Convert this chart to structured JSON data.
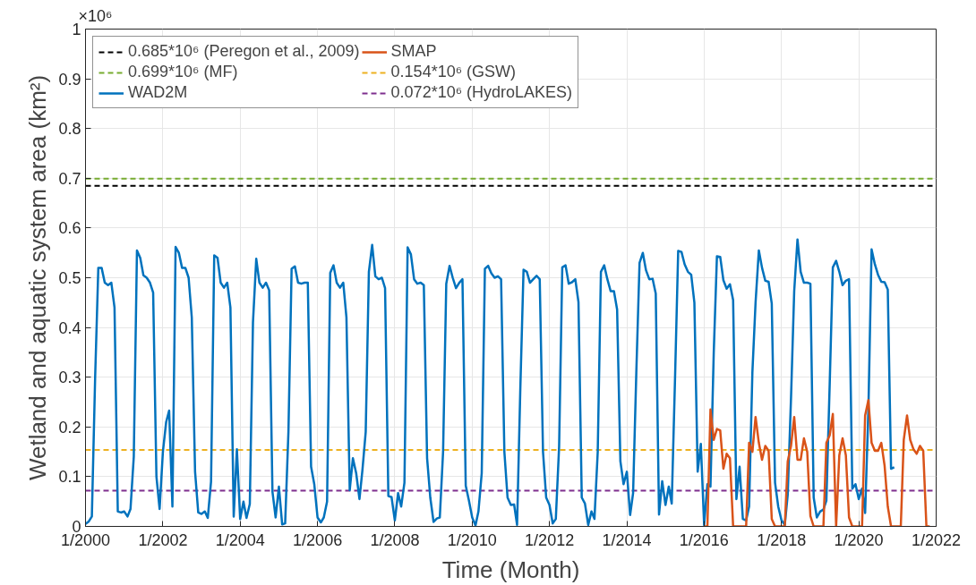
{
  "chart_data": {
    "type": "line",
    "xlabel": "Time (Month)",
    "ylabel": "Wetland and aquatic system area (km²)",
    "annotations": [
      "×10⁶"
    ],
    "xlim": [
      "2000-01",
      "2022-01"
    ],
    "xticks": [
      {
        "value": "2000-01",
        "label": "1/2000"
      },
      {
        "value": "2002-01",
        "label": "1/2002"
      },
      {
        "value": "2004-01",
        "label": "1/2004"
      },
      {
        "value": "2006-01",
        "label": "1/2006"
      },
      {
        "value": "2008-01",
        "label": "1/2008"
      },
      {
        "value": "2010-01",
        "label": "1/2010"
      },
      {
        "value": "2012-01",
        "label": "1/2012"
      },
      {
        "value": "2014-01",
        "label": "1/2014"
      },
      {
        "value": "2016-01",
        "label": "1/2016"
      },
      {
        "value": "2018-01",
        "label": "1/2018"
      },
      {
        "value": "2020-01",
        "label": "1/2020"
      },
      {
        "value": "2022-01",
        "label": "1/2022"
      }
    ],
    "ylim": [
      0,
      1
    ],
    "yticks": [
      0,
      0.1,
      0.2,
      0.3,
      0.4,
      0.5,
      0.6,
      0.7,
      0.8,
      0.9,
      1
    ],
    "grid": true,
    "legend": "top left",
    "line_style": "solid",
    "marker": "none",
    "ref_lines": [
      {
        "axis": "y",
        "value": 0.685,
        "label": "0.685*10⁶ (Peregon et al., 2009)",
        "color": "#000000",
        "line_style": "dashed"
      },
      {
        "axis": "y",
        "value": 0.699,
        "label": "0.699*10⁶ (MF)",
        "color": "#77ac30",
        "line_style": "dashed"
      },
      {
        "axis": "y",
        "value": 0.154,
        "label": "0.154*10⁶ (GSW)",
        "color": "#edb120",
        "line_style": "dashed"
      },
      {
        "axis": "y",
        "value": 0.072,
        "label": "0.072*10⁶ (HydroLAKES)",
        "color": "#7e2f8e",
        "line_style": "dashed"
      }
    ],
    "series": [
      {
        "name": "WAD2M",
        "color": "#0072bd",
        "x": [
          "2000-01",
          "2000-02",
          "2000-03",
          "2000-04",
          "2000-05",
          "2000-06",
          "2000-07",
          "2000-08",
          "2000-09",
          "2000-10",
          "2000-11",
          "2000-12",
          "2001-01",
          "2001-02",
          "2001-03",
          "2001-04",
          "2001-05",
          "2001-06",
          "2001-07",
          "2001-08",
          "2001-09",
          "2001-10",
          "2001-11",
          "2001-12",
          "2002-01",
          "2002-02",
          "2002-03",
          "2002-04",
          "2002-05",
          "2002-06",
          "2002-07",
          "2002-08",
          "2002-09",
          "2002-10",
          "2002-11",
          "2002-12",
          "2003-01",
          "2003-02",
          "2003-03",
          "2003-04",
          "2003-05",
          "2003-06",
          "2003-07",
          "2003-08",
          "2003-09",
          "2003-10",
          "2003-11",
          "2003-12",
          "2004-01",
          "2004-02",
          "2004-03",
          "2004-04",
          "2004-05",
          "2004-06",
          "2004-07",
          "2004-08",
          "2004-09",
          "2004-10",
          "2004-11",
          "2004-12",
          "2005-01",
          "2005-02",
          "2005-03",
          "2005-04",
          "2005-05",
          "2005-06",
          "2005-07",
          "2005-08",
          "2005-09",
          "2005-10",
          "2005-11",
          "2005-12",
          "2006-01",
          "2006-02",
          "2006-03",
          "2006-04",
          "2006-05",
          "2006-06",
          "2006-07",
          "2006-08",
          "2006-09",
          "2006-10",
          "2006-11",
          "2006-12",
          "2007-01",
          "2007-02",
          "2007-03",
          "2007-04",
          "2007-05",
          "2007-06",
          "2007-07",
          "2007-08",
          "2007-09",
          "2007-10",
          "2007-11",
          "2007-12",
          "2008-01",
          "2008-02",
          "2008-03",
          "2008-04",
          "2008-05",
          "2008-06",
          "2008-07",
          "2008-08",
          "2008-09",
          "2008-10",
          "2008-11",
          "2008-12",
          "2009-01",
          "2009-02",
          "2009-03",
          "2009-04",
          "2009-05",
          "2009-06",
          "2009-07",
          "2009-08",
          "2009-09",
          "2009-10",
          "2009-11",
          "2009-12",
          "2010-01",
          "2010-02",
          "2010-03",
          "2010-04",
          "2010-05",
          "2010-06",
          "2010-07",
          "2010-08",
          "2010-09",
          "2010-10",
          "2010-11",
          "2010-12",
          "2011-01",
          "2011-02",
          "2011-03",
          "2011-04",
          "2011-05",
          "2011-06",
          "2011-07",
          "2011-08",
          "2011-09",
          "2011-10",
          "2011-11",
          "2011-12",
          "2012-01",
          "2012-02",
          "2012-03",
          "2012-04",
          "2012-05",
          "2012-06",
          "2012-07",
          "2012-08",
          "2012-09",
          "2012-10",
          "2012-11",
          "2012-12",
          "2013-01",
          "2013-02",
          "2013-03",
          "2013-04",
          "2013-05",
          "2013-06",
          "2013-07",
          "2013-08",
          "2013-09",
          "2013-10",
          "2013-11",
          "2013-12",
          "2014-01",
          "2014-02",
          "2014-03",
          "2014-04",
          "2014-05",
          "2014-06",
          "2014-07",
          "2014-08",
          "2014-09",
          "2014-10",
          "2014-11",
          "2014-12",
          "2015-01",
          "2015-02",
          "2015-03",
          "2015-04",
          "2015-05",
          "2015-06",
          "2015-07",
          "2015-08",
          "2015-09",
          "2015-10",
          "2015-11",
          "2015-12",
          "2016-01",
          "2016-02",
          "2016-03",
          "2016-04",
          "2016-05",
          "2016-06",
          "2016-07",
          "2016-08",
          "2016-09",
          "2016-10",
          "2016-11",
          "2016-12",
          "2017-01",
          "2017-02",
          "2017-03",
          "2017-04",
          "2017-05",
          "2017-06",
          "2017-07",
          "2017-08",
          "2017-09",
          "2017-10",
          "2017-11",
          "2017-12",
          "2018-01",
          "2018-02",
          "2018-03",
          "2018-04",
          "2018-05",
          "2018-06",
          "2018-07",
          "2018-08",
          "2018-09",
          "2018-10",
          "2018-11",
          "2018-12",
          "2019-01",
          "2019-02",
          "2019-03",
          "2019-04",
          "2019-05",
          "2019-06",
          "2019-07",
          "2019-08",
          "2019-09",
          "2019-10",
          "2019-11",
          "2019-12",
          "2020-01",
          "2020-02",
          "2020-03",
          "2020-04",
          "2020-05",
          "2020-06",
          "2020-07",
          "2020-08",
          "2020-09",
          "2020-10",
          "2020-11",
          "2020-12"
        ],
        "values": [
          0.005,
          0.01,
          0.02,
          0.3,
          0.52,
          0.52,
          0.49,
          0.485,
          0.49,
          0.44,
          0.03,
          0.028,
          0.03,
          0.02,
          0.035,
          0.14,
          0.555,
          0.54,
          0.505,
          0.5,
          0.49,
          0.47,
          0.1,
          0.035,
          0.15,
          0.21,
          0.233,
          0.04,
          0.562,
          0.55,
          0.52,
          0.52,
          0.5,
          0.42,
          0.11,
          0.028,
          0.025,
          0.03,
          0.017,
          0.09,
          0.545,
          0.54,
          0.49,
          0.48,
          0.49,
          0.44,
          0.02,
          0.155,
          0.015,
          0.05,
          0.017,
          0.045,
          0.41,
          0.538,
          0.49,
          0.48,
          0.49,
          0.475,
          0.07,
          0.018,
          0.08,
          0.004,
          0.006,
          0.19,
          0.518,
          0.523,
          0.49,
          0.488,
          0.49,
          0.49,
          0.12,
          0.085,
          0.018,
          0.008,
          0.018,
          0.05,
          0.51,
          0.525,
          0.49,
          0.48,
          0.49,
          0.42,
          0.073,
          0.137,
          0.107,
          0.055,
          0.113,
          0.19,
          0.512,
          0.566,
          0.503,
          0.497,
          0.5,
          0.479,
          0.061,
          0.059,
          0.012,
          0.067,
          0.04,
          0.088,
          0.561,
          0.547,
          0.497,
          0.488,
          0.49,
          0.485,
          0.137,
          0.058,
          0.009,
          0.016,
          0.018,
          0.15,
          0.488,
          0.524,
          0.5,
          0.479,
          0.49,
          0.497,
          0.082,
          0.052,
          0.018,
          0.002,
          0.03,
          0.107,
          0.518,
          0.524,
          0.509,
          0.5,
          0.503,
          0.497,
          0.15,
          0.058,
          0.043,
          0.044,
          0.003,
          0.28,
          0.516,
          0.512,
          0.49,
          0.497,
          0.504,
          0.497,
          0.15,
          0.058,
          0.043,
          0.006,
          0.015,
          0.16,
          0.521,
          0.525,
          0.488,
          0.491,
          0.497,
          0.451,
          0.058,
          0.046,
          0.003,
          0.03,
          0.015,
          0.15,
          0.512,
          0.525,
          0.497,
          0.473,
          0.473,
          0.436,
          0.131,
          0.085,
          0.11,
          0.023,
          0.067,
          0.314,
          0.53,
          0.55,
          0.515,
          0.497,
          0.498,
          0.468,
          0.024,
          0.091,
          0.043,
          0.08,
          0.046,
          0.296,
          0.554,
          0.552,
          0.527,
          0.512,
          0.506,
          0.45,
          0.11,
          0.166,
          0.003,
          0.085,
          0.08,
          0.35,
          0.543,
          0.542,
          0.495,
          0.478,
          0.487,
          0.455,
          0.055,
          0.12,
          0.015,
          0.012,
          0.04,
          0.31,
          0.45,
          0.555,
          0.52,
          0.494,
          0.492,
          0.448,
          0.088,
          0.04,
          0.012,
          0.003,
          0.064,
          0.259,
          0.473,
          0.577,
          0.512,
          0.49,
          0.49,
          0.488,
          0.058,
          0.018,
          0.03,
          0.034,
          0.052,
          0.284,
          0.521,
          0.534,
          0.512,
          0.485,
          0.494,
          0.497,
          0.076,
          0.085,
          0.055,
          0.076,
          0.027,
          0.235,
          0.557,
          0.527,
          0.506,
          0.492,
          0.491,
          0.476,
          0.116,
          0.119
        ]
      },
      {
        "name": "SMAP",
        "color": "#d95319",
        "x": [
          "2016-01",
          "2016-02",
          "2016-03",
          "2016-04",
          "2016-05",
          "2016-06",
          "2016-07",
          "2016-08",
          "2016-09",
          "2016-10",
          "2016-11",
          "2016-12",
          "2017-01",
          "2017-02",
          "2017-03",
          "2017-04",
          "2017-05",
          "2017-06",
          "2017-07",
          "2017-08",
          "2017-09",
          "2017-10",
          "2017-11",
          "2017-12",
          "2018-01",
          "2018-02",
          "2018-03",
          "2018-04",
          "2018-05",
          "2018-06",
          "2018-07",
          "2018-08",
          "2018-09",
          "2018-10",
          "2018-11",
          "2018-12",
          "2019-01",
          "2019-02",
          "2019-03",
          "2019-04",
          "2019-05",
          "2019-06",
          "2019-07",
          "2019-08",
          "2019-09",
          "2019-10",
          "2019-11",
          "2019-12",
          "2020-01",
          "2020-02",
          "2020-03",
          "2020-04",
          "2020-05",
          "2020-06",
          "2020-07",
          "2020-08",
          "2020-09",
          "2020-10",
          "2020-11",
          "2020-12",
          "2021-01",
          "2021-02",
          "2021-03",
          "2021-04",
          "2021-05",
          "2021-06",
          "2021-07",
          "2021-08",
          "2021-09",
          "2021-10",
          "2021-11"
        ],
        "values": [
          0,
          0,
          0.235,
          0.174,
          0.196,
          0.193,
          0.116,
          0.146,
          0.137,
          0,
          0,
          0,
          0,
          0,
          0.168,
          0.15,
          0.22,
          0.168,
          0.134,
          0.162,
          0.152,
          0.015,
          0,
          0,
          0,
          0,
          0.131,
          0.162,
          0.22,
          0.134,
          0.134,
          0.177,
          0.15,
          0.021,
          0,
          0,
          0,
          0,
          0.168,
          0.183,
          0.226,
          0,
          0.143,
          0.177,
          0.143,
          0.018,
          0,
          0,
          0,
          0,
          0.223,
          0.254,
          0.168,
          0.152,
          0.152,
          0.168,
          0.122,
          0.04,
          0,
          0,
          0,
          0,
          0.174,
          0.223,
          0.174,
          0.155,
          0.146,
          0.162,
          0.152,
          0,
          0
        ]
      }
    ]
  }
}
